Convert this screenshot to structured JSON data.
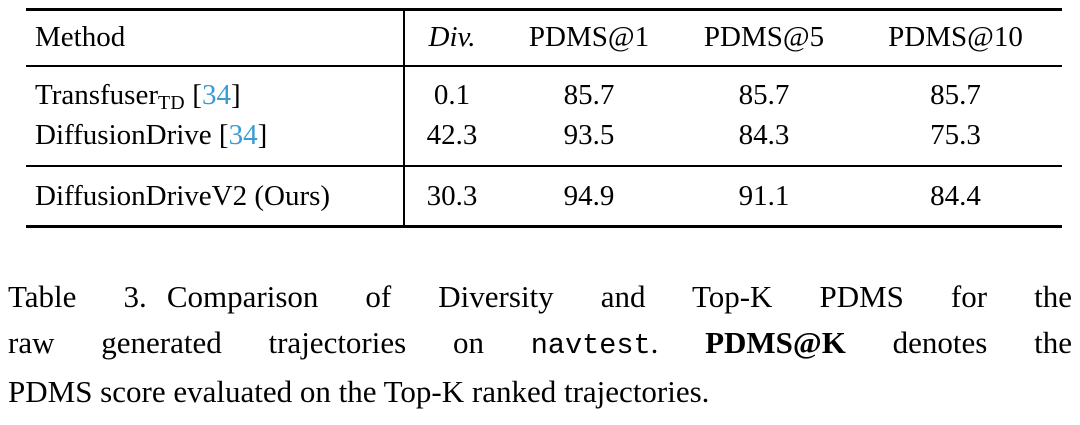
{
  "colors": {
    "citation_blue": "#3a9cd5",
    "text": "#000000",
    "background": "#ffffff"
  },
  "table": {
    "headers": {
      "method": "Method",
      "div": "Div.",
      "pdms1": "PDMS@1",
      "pdms5": "PDMS@5",
      "pdms10": "PDMS@10"
    },
    "rows": [
      {
        "method_main": "Transfuser",
        "method_sub": "TD",
        "cite_open": " [",
        "cite_num": "34",
        "cite_close": "]",
        "div": "0.1",
        "pdms1": "85.7",
        "pdms5": "85.7",
        "pdms10": "85.7"
      },
      {
        "method_main": "DiffusionDrive",
        "method_sub": "",
        "cite_open": " [",
        "cite_num": "34",
        "cite_close": "]",
        "div": "42.3",
        "pdms1": "93.5",
        "pdms5": "84.3",
        "pdms10": "75.3"
      },
      {
        "method_main": "DiffusionDriveV2 (Ours)",
        "method_sub": "",
        "cite_open": "",
        "cite_num": "",
        "cite_close": "",
        "div": "30.3",
        "pdms1": "94.9",
        "pdms5": "91.1",
        "pdms10": "84.4"
      }
    ]
  },
  "caption": {
    "label": "Table 3.",
    "line1_text": "Comparison of Diversity and Top-K PDMS for the",
    "line2_pre": "raw generated trajectories on",
    "code": "navtest",
    "code_period": ".",
    "bold_term": "PDMS@K",
    "line2_post": "denotes the",
    "line3": "PDMS score evaluated on the Top-K ranked trajectories."
  }
}
